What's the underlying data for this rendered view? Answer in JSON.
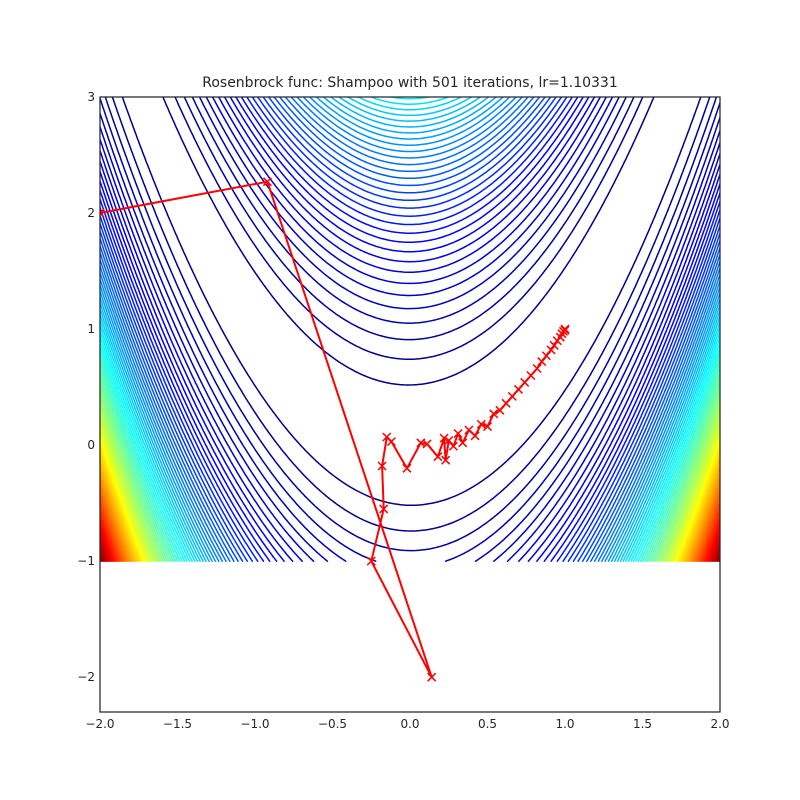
{
  "chart_data": {
    "type": "line",
    "title": "Rosenbrock func: Shampoo with 501 iterations, lr=1.10331",
    "xlabel": "",
    "ylabel": "",
    "xlim": [
      -2.0,
      2.0
    ],
    "ylim": [
      -2.3,
      3.0
    ],
    "x_ticks": [
      "−2.0",
      "−1.5",
      "−1.0",
      "−0.5",
      "0.0",
      "0.5",
      "1.0",
      "1.5",
      "2.0"
    ],
    "x_tick_values": [
      -2.0,
      -1.5,
      -1.0,
      -0.5,
      0.0,
      0.5,
      1.0,
      1.5,
      2.0
    ],
    "y_ticks": [
      "−2",
      "−1",
      "0",
      "1",
      "2",
      "3"
    ],
    "y_tick_values": [
      -2,
      -1,
      0,
      1,
      2,
      3
    ],
    "grid": false,
    "contour": {
      "function": "rosenbrock",
      "x_range": [
        -2.0,
        2.0
      ],
      "y_range": [
        -1.0,
        3.0
      ],
      "levels": 90,
      "colormap": "jet"
    },
    "series": [
      {
        "color": "#ff0000",
        "marker": "x",
        "x": [
          -2.0,
          -0.92,
          0.14,
          -0.25,
          -0.17,
          -0.18,
          -0.15,
          -0.12,
          -0.02,
          0.07,
          0.11,
          0.18,
          0.22,
          0.23,
          0.25,
          0.28,
          0.31,
          0.34,
          0.38,
          0.42,
          0.46,
          0.5,
          0.54,
          0.58,
          0.62,
          0.66,
          0.7,
          0.74,
          0.78,
          0.82,
          0.85,
          0.88,
          0.91,
          0.93,
          0.95,
          0.97,
          0.98,
          0.99,
          1.0,
          1.0
        ],
        "y": [
          2.0,
          2.27,
          -2.0,
          -1.0,
          -0.55,
          -0.18,
          0.07,
          0.03,
          -0.2,
          0.02,
          0.01,
          -0.1,
          0.06,
          -0.13,
          0.04,
          -0.01,
          0.1,
          0.02,
          0.13,
          0.08,
          0.18,
          0.16,
          0.27,
          0.3,
          0.36,
          0.42,
          0.48,
          0.54,
          0.6,
          0.66,
          0.72,
          0.77,
          0.82,
          0.86,
          0.9,
          0.93,
          0.96,
          0.98,
          0.99,
          1.0
        ]
      }
    ]
  }
}
